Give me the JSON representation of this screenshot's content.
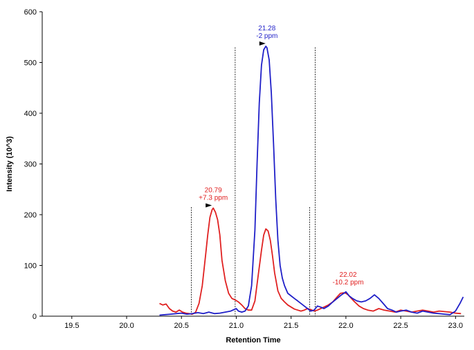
{
  "chart_data": {
    "type": "line",
    "xlabel": "Retention Time",
    "ylabel": "Intensity (10^3)",
    "xlim": [
      19.23,
      23.08
    ],
    "ylim": [
      0,
      600
    ],
    "grid": false,
    "x_ticks": [
      "19.5",
      "20.0",
      "20.5",
      "21.0",
      "21.5",
      "22.0",
      "22.5",
      "23.0"
    ],
    "y_ticks": [
      "0",
      "100",
      "200",
      "300",
      "400",
      "500",
      "600"
    ],
    "colors": {
      "red": "#e02020",
      "blue": "#1f1fc8",
      "axis": "#000000",
      "marker": "#000000"
    },
    "series": [
      {
        "color": "#e02020",
        "x": [
          20.3,
          20.33,
          20.36,
          20.39,
          20.42,
          20.45,
          20.48,
          20.51,
          20.54,
          20.57,
          20.6,
          20.63,
          20.66,
          20.69,
          20.72,
          20.74,
          20.76,
          20.78,
          20.79,
          20.81,
          20.83,
          20.85,
          20.87,
          20.9,
          20.93,
          20.96,
          20.99,
          21.02,
          21.05,
          21.08,
          21.11,
          21.14,
          21.17,
          21.2,
          21.23,
          21.25,
          21.27,
          21.29,
          21.31,
          21.33,
          21.35,
          21.38,
          21.41,
          21.44,
          21.47,
          21.5,
          21.53,
          21.56,
          21.59,
          21.62,
          21.65,
          21.68,
          21.71,
          21.74,
          21.77,
          21.8,
          21.84,
          21.88,
          21.92,
          21.95,
          21.98,
          22.0,
          22.02,
          22.05,
          22.08,
          22.12,
          22.16,
          22.2,
          22.25,
          22.3,
          22.35,
          22.4,
          22.45,
          22.5,
          22.55,
          22.6,
          22.65,
          22.7,
          22.75,
          22.8,
          22.85,
          22.9,
          22.95,
          23.0,
          23.05
        ],
        "y": [
          25,
          22,
          24,
          15,
          10,
          8,
          12,
          8,
          6,
          5,
          4,
          8,
          25,
          60,
          120,
          160,
          195,
          210,
          213,
          205,
          190,
          160,
          110,
          70,
          45,
          35,
          32,
          28,
          22,
          15,
          12,
          12,
          30,
          80,
          130,
          160,
          172,
          168,
          150,
          120,
          85,
          50,
          35,
          28,
          22,
          18,
          14,
          12,
          10,
          12,
          15,
          13,
          10,
          12,
          15,
          18,
          22,
          28,
          38,
          45,
          46,
          45,
          42,
          35,
          28,
          20,
          15,
          12,
          10,
          15,
          12,
          10,
          8,
          12,
          10,
          8,
          10,
          12,
          10,
          8,
          10,
          9,
          8,
          6,
          5
        ]
      },
      {
        "color": "#1f1fc8",
        "x": [
          20.3,
          20.35,
          20.4,
          20.45,
          20.5,
          20.55,
          20.6,
          20.65,
          20.7,
          20.75,
          20.8,
          20.85,
          20.9,
          20.95,
          21.0,
          21.02,
          21.05,
          21.08,
          21.11,
          21.14,
          21.17,
          21.19,
          21.21,
          21.23,
          21.25,
          21.27,
          21.28,
          21.3,
          21.32,
          21.34,
          21.36,
          21.38,
          21.4,
          21.42,
          21.44,
          21.47,
          21.5,
          21.53,
          21.56,
          21.59,
          21.62,
          21.65,
          21.68,
          21.71,
          21.74,
          21.77,
          21.8,
          21.84,
          21.88,
          21.92,
          21.96,
          22.0,
          22.03,
          22.06,
          22.1,
          22.14,
          22.18,
          22.22,
          22.26,
          22.3,
          22.34,
          22.38,
          22.42,
          22.46,
          22.5,
          22.55,
          22.6,
          22.65,
          22.7,
          22.75,
          22.8,
          22.85,
          22.9,
          22.95,
          23.0,
          23.04,
          23.07
        ],
        "y": [
          2,
          3,
          4,
          5,
          6,
          4,
          5,
          7,
          5,
          8,
          5,
          6,
          8,
          10,
          15,
          10,
          8,
          10,
          20,
          60,
          170,
          300,
          420,
          495,
          525,
          532,
          529,
          505,
          440,
          340,
          230,
          150,
          100,
          75,
          60,
          45,
          40,
          35,
          30,
          25,
          20,
          15,
          10,
          12,
          20,
          18,
          15,
          20,
          28,
          35,
          42,
          48,
          40,
          35,
          30,
          28,
          30,
          35,
          42,
          35,
          25,
          15,
          12,
          8,
          10,
          12,
          8,
          6,
          10,
          8,
          6,
          5,
          4,
          3,
          10,
          25,
          38
        ]
      }
    ],
    "annotations": [
      {
        "line1": "20.79",
        "line2": "+7.3 ppm",
        "color": "#e02020",
        "x": 20.79,
        "y": 213
      },
      {
        "line1": "21.28",
        "line2": "-2 ppm",
        "color": "#1f1fc8",
        "x": 21.28,
        "y": 532
      },
      {
        "line1": "22.02",
        "line2": "-10.2 ppm",
        "color": "#e02020",
        "x": 22.02,
        "y": 46
      }
    ],
    "vlines": [
      {
        "x": 20.59,
        "y_top": 215
      },
      {
        "x": 20.99,
        "y_top": 530
      },
      {
        "x": 21.67,
        "y_top": 215
      },
      {
        "x": 21.72,
        "y_top": 530
      }
    ]
  }
}
